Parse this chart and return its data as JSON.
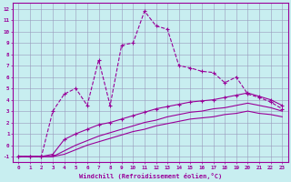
{
  "bg_color": "#c8eef0",
  "line_color": "#990099",
  "grid_color": "#9999bb",
  "xlabel": "Windchill (Refroidissement éolien,°C)",
  "xlim": [
    -0.5,
    23.5
  ],
  "ylim": [
    -1.5,
    12.5
  ],
  "xticks": [
    0,
    1,
    2,
    3,
    4,
    5,
    6,
    7,
    8,
    9,
    10,
    11,
    12,
    13,
    14,
    15,
    16,
    17,
    18,
    19,
    20,
    21,
    22,
    23
  ],
  "yticks": [
    -1,
    0,
    1,
    2,
    3,
    4,
    5,
    6,
    7,
    8,
    9,
    10,
    11,
    12
  ],
  "series": [
    {
      "x": [
        0,
        1,
        2,
        3,
        4,
        5,
        6,
        7,
        8,
        9,
        10,
        11,
        12,
        13,
        14,
        15,
        16,
        17,
        18,
        19,
        20,
        21,
        22,
        23
      ],
      "y": [
        -1,
        -1,
        -1,
        3,
        4.5,
        5,
        3.5,
        7.5,
        3.5,
        8.8,
        9,
        11.8,
        10.5,
        10.2,
        7,
        6.8,
        6.5,
        6.4,
        5.5,
        6,
        4.5,
        4.2,
        3.8,
        3.2
      ],
      "marker": true,
      "linestyle": "--"
    },
    {
      "x": [
        0,
        1,
        2,
        3,
        4,
        5,
        6,
        7,
        8,
        9,
        10,
        11,
        12,
        13,
        14,
        15,
        16,
        17,
        18,
        19,
        20,
        21,
        22,
        23
      ],
      "y": [
        -1,
        -1,
        -1,
        -0.8,
        0.5,
        1.0,
        1.4,
        1.8,
        2.0,
        2.3,
        2.6,
        2.9,
        3.2,
        3.4,
        3.6,
        3.8,
        3.9,
        4.0,
        4.2,
        4.4,
        4.6,
        4.3,
        4.0,
        3.5
      ],
      "marker": true,
      "linestyle": "-"
    },
    {
      "x": [
        0,
        1,
        2,
        3,
        4,
        5,
        6,
        7,
        8,
        9,
        10,
        11,
        12,
        13,
        14,
        15,
        16,
        17,
        18,
        19,
        20,
        21,
        22,
        23
      ],
      "y": [
        -1,
        -1,
        -1,
        -1,
        -0.5,
        0.0,
        0.4,
        0.8,
        1.1,
        1.4,
        1.7,
        2.0,
        2.2,
        2.5,
        2.7,
        2.9,
        3.0,
        3.2,
        3.3,
        3.5,
        3.7,
        3.5,
        3.3,
        3.0
      ],
      "marker": false,
      "linestyle": "-"
    },
    {
      "x": [
        0,
        1,
        2,
        3,
        4,
        5,
        6,
        7,
        8,
        9,
        10,
        11,
        12,
        13,
        14,
        15,
        16,
        17,
        18,
        19,
        20,
        21,
        22,
        23
      ],
      "y": [
        -1,
        -1,
        -1,
        -1,
        -0.8,
        -0.4,
        0.0,
        0.3,
        0.6,
        0.9,
        1.2,
        1.4,
        1.7,
        1.9,
        2.1,
        2.3,
        2.4,
        2.5,
        2.7,
        2.8,
        3.0,
        2.8,
        2.7,
        2.5
      ],
      "marker": false,
      "linestyle": "-"
    }
  ]
}
